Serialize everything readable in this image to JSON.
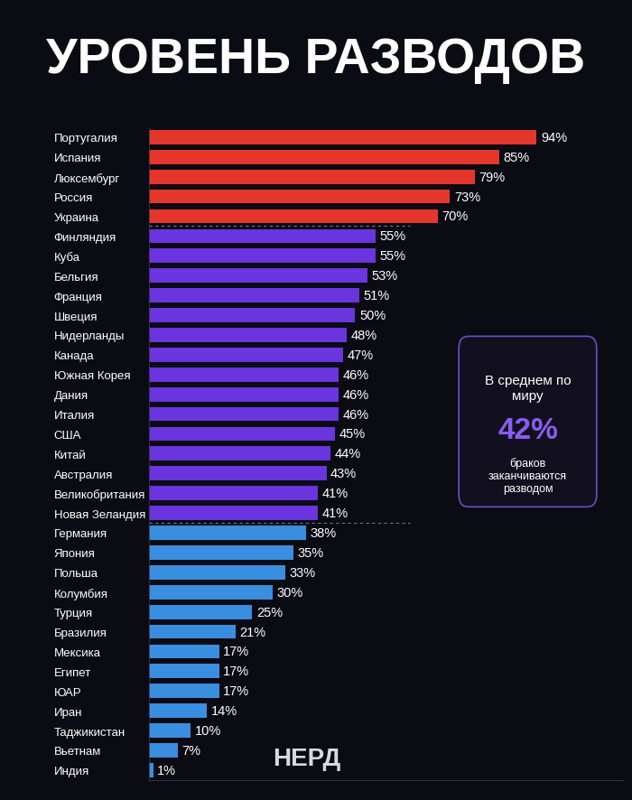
{
  "chart_data": {
    "type": "bar",
    "orientation": "horizontal",
    "title": "УРОВЕНЬ РАЗВОДОВ",
    "categories": [
      "Португалия",
      "Испания",
      "Люксембург",
      "Россия",
      "Украина",
      "Финляндия",
      "Куба",
      "Бельгия",
      "Франция",
      "Швеция",
      "Нидерланды",
      "Канада",
      "Южная Корея",
      "Дания",
      "Италия",
      "США",
      "Китай",
      "Австралия",
      "Великобритания",
      "Новая Зеландия",
      "Германия",
      "Япония",
      "Польша",
      "Колумбия",
      "Турция",
      "Бразилия",
      "Мексика",
      "Египет",
      "ЮАР",
      "Иран",
      "Таджикистан",
      "Вьетнам",
      "Индия"
    ],
    "values": [
      94,
      85,
      79,
      73,
      70,
      55,
      55,
      53,
      51,
      50,
      48,
      47,
      46,
      46,
      46,
      45,
      44,
      43,
      41,
      41,
      38,
      35,
      33,
      30,
      25,
      21,
      17,
      17,
      17,
      14,
      10,
      7,
      1
    ],
    "value_labels": [
      "94%",
      "85%",
      "79%",
      "73%",
      "70%",
      "55%",
      "55%",
      "53%",
      "51%",
      "50%",
      "48%",
      "47%",
      "46%",
      "46%",
      "46%",
      "45%",
      "44%",
      "43%",
      "41%",
      "41%",
      "38%",
      "35%",
      "33%",
      "30%",
      "25%",
      "21%",
      "17%",
      "17%",
      "17%",
      "14%",
      "10%",
      "7%",
      "1%"
    ],
    "colors": [
      "#e5362c",
      "#e5362c",
      "#e5362c",
      "#e5362c",
      "#e5362c",
      "#6a34de",
      "#6a34de",
      "#6a34de",
      "#6a34de",
      "#6a34de",
      "#6a34de",
      "#6a34de",
      "#6a34de",
      "#6a34de",
      "#6a34de",
      "#6a34de",
      "#6a34de",
      "#6a34de",
      "#6a34de",
      "#6a34de",
      "#3a8ee0",
      "#3a8ee0",
      "#3a8ee0",
      "#3a8ee0",
      "#3a8ee0",
      "#3a8ee0",
      "#3a8ee0",
      "#3a8ee0",
      "#3a8ee0",
      "#3a8ee0",
      "#3a8ee0",
      "#3a8ee0",
      "#3a8ee0"
    ],
    "xlim": [
      0,
      115
    ],
    "xticks": [],
    "tick_labels": "y",
    "data_labels": true,
    "annotations": {
      "info_heading": "В среднем по миру",
      "info_value": "42%",
      "info_text": "браков заканчиваются разводом",
      "logo": "НЕРД"
    }
  }
}
